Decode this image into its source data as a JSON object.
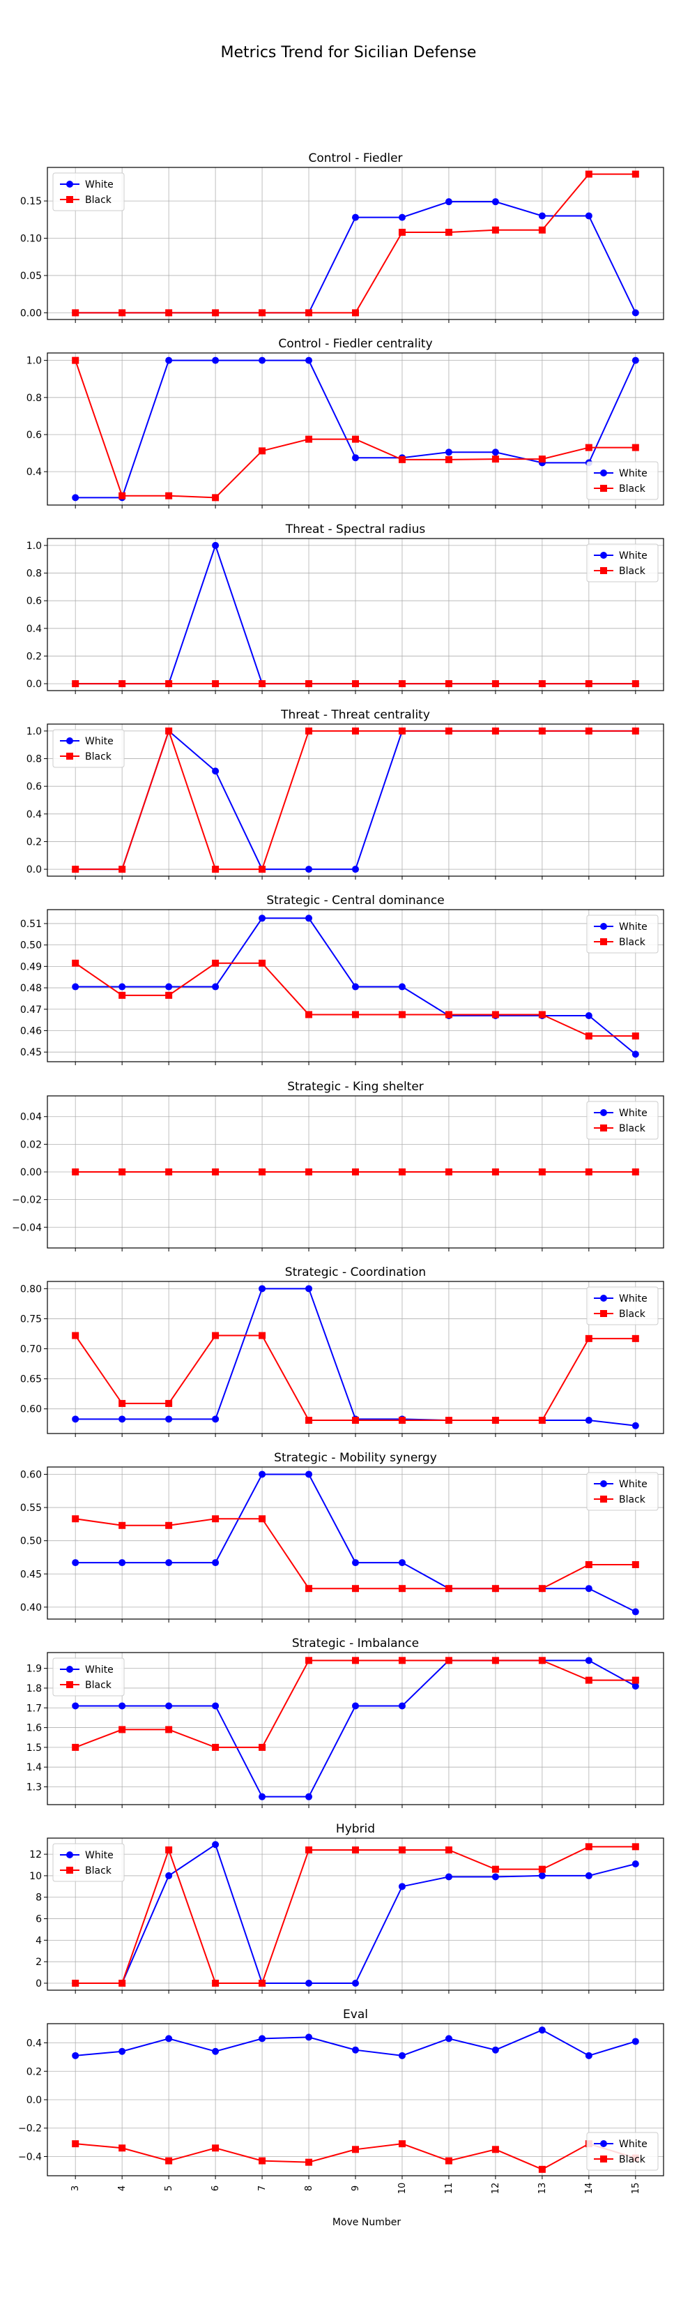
{
  "figure_title": "Metrics Trend for Sicilian Defense",
  "x_label": "Move Number",
  "colors": {
    "white": "#0000ff",
    "black": "#ff0000"
  },
  "legend_labels": [
    "White",
    "Black"
  ],
  "chart_data": [
    {
      "type": "line",
      "title": "Control - Fiedler",
      "x": [
        3,
        4,
        5,
        6,
        7,
        8,
        9,
        10,
        11,
        12,
        13,
        14,
        15
      ],
      "ylim": [
        -0.009,
        0.195
      ],
      "yticks": [
        0.0,
        0.05,
        0.1,
        0.15
      ],
      "yticklabels": [
        "0.00",
        "0.05",
        "0.10",
        "0.15"
      ],
      "legend": "upper-left",
      "series": [
        {
          "name": "White",
          "values": [
            0,
            0,
            0,
            0,
            0,
            0,
            0.128,
            0.128,
            0.149,
            0.149,
            0.13,
            0.13,
            0
          ]
        },
        {
          "name": "Black",
          "values": [
            0,
            0,
            0,
            0,
            0,
            0,
            0,
            0.108,
            0.108,
            0.111,
            0.111,
            0.186,
            0.186
          ]
        }
      ]
    },
    {
      "type": "line",
      "title": "Control - Fiedler centrality",
      "x": [
        3,
        4,
        5,
        6,
        7,
        8,
        9,
        10,
        11,
        12,
        13,
        14,
        15
      ],
      "ylim": [
        0.22,
        1.04
      ],
      "yticks": [
        0.4,
        0.6,
        0.8,
        1.0
      ],
      "yticklabels": [
        "0.4",
        "0.6",
        "0.8",
        "1.0"
      ],
      "legend": "lower-right",
      "series": [
        {
          "name": "White",
          "values": [
            0.26,
            0.26,
            1.0,
            1.0,
            1.0,
            1.0,
            0.475,
            0.475,
            0.505,
            0.505,
            0.448,
            0.448,
            1.0
          ]
        },
        {
          "name": "Black",
          "values": [
            1.0,
            0.27,
            0.27,
            0.26,
            0.512,
            0.575,
            0.575,
            0.465,
            0.465,
            0.468,
            0.468,
            0.53,
            0.53
          ]
        }
      ]
    },
    {
      "type": "line",
      "title": "Threat - Spectral radius",
      "x": [
        3,
        4,
        5,
        6,
        7,
        8,
        9,
        10,
        11,
        12,
        13,
        14,
        15
      ],
      "ylim": [
        -0.05,
        1.05
      ],
      "yticks": [
        0.0,
        0.2,
        0.4,
        0.6,
        0.8,
        1.0
      ],
      "yticklabels": [
        "0.0",
        "0.2",
        "0.4",
        "0.6",
        "0.8",
        "1.0"
      ],
      "legend": "upper-right",
      "series": [
        {
          "name": "White",
          "values": [
            0,
            0,
            0,
            1.0,
            0,
            0,
            0,
            0,
            0,
            0,
            0,
            0,
            0
          ]
        },
        {
          "name": "Black",
          "values": [
            0,
            0,
            0,
            0,
            0,
            0,
            0,
            0,
            0,
            0,
            0,
            0,
            0
          ]
        }
      ]
    },
    {
      "type": "line",
      "title": "Threat - Threat centrality",
      "x": [
        3,
        4,
        5,
        6,
        7,
        8,
        9,
        10,
        11,
        12,
        13,
        14,
        15
      ],
      "ylim": [
        -0.05,
        1.05
      ],
      "yticks": [
        0.0,
        0.2,
        0.4,
        0.6,
        0.8,
        1.0
      ],
      "yticklabels": [
        "0.0",
        "0.2",
        "0.4",
        "0.6",
        "0.8",
        "1.0"
      ],
      "legend": "upper-left",
      "series": [
        {
          "name": "White",
          "values": [
            0,
            0,
            1.0,
            0.71,
            0,
            0,
            0,
            1.0,
            1.0,
            1.0,
            1.0,
            1.0,
            1.0
          ]
        },
        {
          "name": "Black",
          "values": [
            0,
            0,
            1.0,
            0,
            0,
            1.0,
            1.0,
            1.0,
            1.0,
            1.0,
            1.0,
            1.0,
            1.0
          ]
        }
      ]
    },
    {
      "type": "line",
      "title": "Strategic - Central dominance",
      "x": [
        3,
        4,
        5,
        6,
        7,
        8,
        9,
        10,
        11,
        12,
        13,
        14,
        15
      ],
      "ylim": [
        0.4455,
        0.5165
      ],
      "yticks": [
        0.45,
        0.46,
        0.47,
        0.48,
        0.49,
        0.5,
        0.51
      ],
      "yticklabels": [
        "0.45",
        "0.46",
        "0.47",
        "0.48",
        "0.49",
        "0.50",
        "0.51"
      ],
      "legend": "upper-right",
      "series": [
        {
          "name": "White",
          "values": [
            0.4805,
            0.4805,
            0.4805,
            0.4805,
            0.5125,
            0.5125,
            0.4805,
            0.4805,
            0.467,
            0.467,
            0.467,
            0.467,
            0.449
          ]
        },
        {
          "name": "Black",
          "values": [
            0.4915,
            0.4765,
            0.4765,
            0.4915,
            0.4915,
            0.4675,
            0.4675,
            0.4675,
            0.4675,
            0.4675,
            0.4675,
            0.4575,
            0.4575
          ]
        }
      ]
    },
    {
      "type": "line",
      "title": "Strategic - King shelter",
      "x": [
        3,
        4,
        5,
        6,
        7,
        8,
        9,
        10,
        11,
        12,
        13,
        14,
        15
      ],
      "ylim": [
        -0.055,
        0.055
      ],
      "yticks": [
        -0.04,
        -0.02,
        0.0,
        0.02,
        0.04
      ],
      "yticklabels": [
        "−0.04",
        "−0.02",
        "0.00",
        "0.02",
        "0.04"
      ],
      "legend": "upper-right",
      "series": [
        {
          "name": "White",
          "values": [
            0,
            0,
            0,
            0,
            0,
            0,
            0,
            0,
            0,
            0,
            0,
            0,
            0
          ]
        },
        {
          "name": "Black",
          "values": [
            0,
            0,
            0,
            0,
            0,
            0,
            0,
            0,
            0,
            0,
            0,
            0,
            0
          ]
        }
      ]
    },
    {
      "type": "line",
      "title": "Strategic - Coordination",
      "x": [
        3,
        4,
        5,
        6,
        7,
        8,
        9,
        10,
        11,
        12,
        13,
        14,
        15
      ],
      "ylim": [
        0.559,
        0.812
      ],
      "yticks": [
        0.6,
        0.65,
        0.7,
        0.75,
        0.8
      ],
      "yticklabels": [
        "0.60",
        "0.65",
        "0.70",
        "0.75",
        "0.80"
      ],
      "legend": "upper-right",
      "series": [
        {
          "name": "White",
          "values": [
            0.583,
            0.583,
            0.583,
            0.583,
            0.8,
            0.8,
            0.583,
            0.583,
            0.581,
            0.581,
            0.581,
            0.581,
            0.572
          ]
        },
        {
          "name": "Black",
          "values": [
            0.722,
            0.609,
            0.609,
            0.722,
            0.722,
            0.581,
            0.581,
            0.581,
            0.581,
            0.581,
            0.581,
            0.717,
            0.717
          ]
        }
      ]
    },
    {
      "type": "line",
      "title": "Strategic - Mobility synergy",
      "x": [
        3,
        4,
        5,
        6,
        7,
        8,
        9,
        10,
        11,
        12,
        13,
        14,
        15
      ],
      "ylim": [
        0.382,
        0.611
      ],
      "yticks": [
        0.4,
        0.45,
        0.5,
        0.55,
        0.6
      ],
      "yticklabels": [
        "0.40",
        "0.45",
        "0.50",
        "0.55",
        "0.60"
      ],
      "legend": "upper-right",
      "series": [
        {
          "name": "White",
          "values": [
            0.467,
            0.467,
            0.467,
            0.467,
            0.6,
            0.6,
            0.467,
            0.467,
            0.428,
            0.428,
            0.428,
            0.428,
            0.393
          ]
        },
        {
          "name": "Black",
          "values": [
            0.533,
            0.523,
            0.523,
            0.533,
            0.533,
            0.428,
            0.428,
            0.428,
            0.428,
            0.428,
            0.428,
            0.464,
            0.464
          ]
        }
      ]
    },
    {
      "type": "line",
      "title": "Strategic - Imbalance",
      "x": [
        3,
        4,
        5,
        6,
        7,
        8,
        9,
        10,
        11,
        12,
        13,
        14,
        15
      ],
      "ylim": [
        1.21,
        1.98
      ],
      "yticks": [
        1.3,
        1.4,
        1.5,
        1.6,
        1.7,
        1.8,
        1.9
      ],
      "yticklabels": [
        "1.3",
        "1.4",
        "1.5",
        "1.6",
        "1.7",
        "1.8",
        "1.9"
      ],
      "legend": "upper-left",
      "series": [
        {
          "name": "White",
          "values": [
            1.71,
            1.71,
            1.71,
            1.71,
            1.25,
            1.25,
            1.71,
            1.71,
            1.94,
            1.94,
            1.94,
            1.94,
            1.81
          ]
        },
        {
          "name": "Black",
          "values": [
            1.5,
            1.59,
            1.59,
            1.5,
            1.5,
            1.94,
            1.94,
            1.94,
            1.94,
            1.94,
            1.94,
            1.84,
            1.84
          ]
        }
      ]
    },
    {
      "type": "line",
      "title": "Hybrid",
      "x": [
        3,
        4,
        5,
        6,
        7,
        8,
        9,
        10,
        11,
        12,
        13,
        14,
        15
      ],
      "ylim": [
        -0.65,
        13.5
      ],
      "yticks": [
        0,
        2,
        4,
        6,
        8,
        10,
        12
      ],
      "yticklabels": [
        "0",
        "2",
        "4",
        "6",
        "8",
        "10",
        "12"
      ],
      "legend": "upper-left",
      "series": [
        {
          "name": "White",
          "values": [
            0,
            0,
            10.0,
            12.9,
            0,
            0,
            0,
            9.0,
            9.9,
            9.9,
            10.0,
            10.0,
            11.1
          ]
        },
        {
          "name": "Black",
          "values": [
            0,
            0,
            12.4,
            0,
            0,
            12.4,
            12.4,
            12.4,
            12.4,
            10.6,
            10.6,
            12.7,
            12.7
          ]
        }
      ]
    },
    {
      "type": "line",
      "title": "Eval",
      "x": [
        3,
        4,
        5,
        6,
        7,
        8,
        9,
        10,
        11,
        12,
        13,
        14,
        15
      ],
      "ylim": [
        -0.535,
        0.535
      ],
      "yticks": [
        -0.4,
        -0.2,
        0.0,
        0.2,
        0.4
      ],
      "yticklabels": [
        "−0.4",
        "−0.2",
        "0.0",
        "0.2",
        "0.4"
      ],
      "legend": "lower-right",
      "series": [
        {
          "name": "White",
          "values": [
            0.31,
            0.34,
            0.43,
            0.34,
            0.43,
            0.44,
            0.35,
            0.31,
            0.43,
            0.35,
            0.49,
            0.31,
            0.41
          ]
        },
        {
          "name": "Black",
          "values": [
            -0.31,
            -0.34,
            -0.43,
            -0.34,
            -0.43,
            -0.44,
            -0.35,
            -0.31,
            -0.43,
            -0.35,
            -0.49,
            -0.31,
            -0.41
          ]
        }
      ]
    }
  ]
}
